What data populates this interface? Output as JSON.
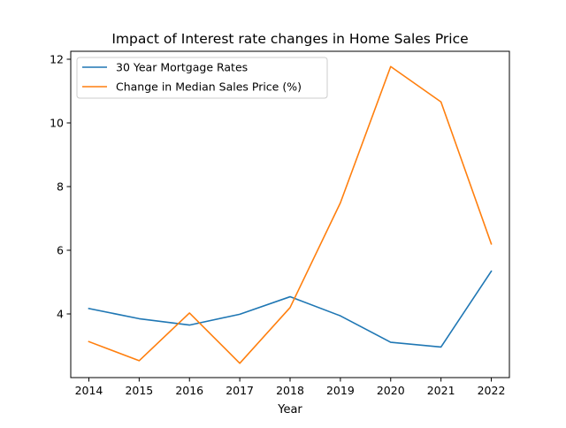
{
  "chart_data": {
    "type": "line",
    "title": "Impact of Interest rate changes in Home Sales Price",
    "xlabel": "Year",
    "ylabel": "",
    "x": [
      2014,
      2015,
      2016,
      2017,
      2018,
      2019,
      2020,
      2021,
      2022
    ],
    "x_ticks": [
      "2014",
      "2015",
      "2016",
      "2017",
      "2018",
      "2019",
      "2020",
      "2021",
      "2022"
    ],
    "y_ticks": [
      "4",
      "6",
      "8",
      "10",
      "12"
    ],
    "ylim": [
      2.0,
      12.25
    ],
    "grid": false,
    "legend_position": "top-left",
    "series": [
      {
        "name": "30 Year Mortgage Rates",
        "color": "#1f77b4",
        "values": [
          4.17,
          3.85,
          3.65,
          3.99,
          4.54,
          3.94,
          3.11,
          2.96,
          5.34
        ]
      },
      {
        "name": "Change in Median Sales Price (%)",
        "color": "#ff7f0e",
        "values": [
          3.13,
          2.53,
          4.03,
          2.45,
          4.2,
          7.49,
          11.77,
          10.66,
          6.2
        ]
      }
    ]
  }
}
